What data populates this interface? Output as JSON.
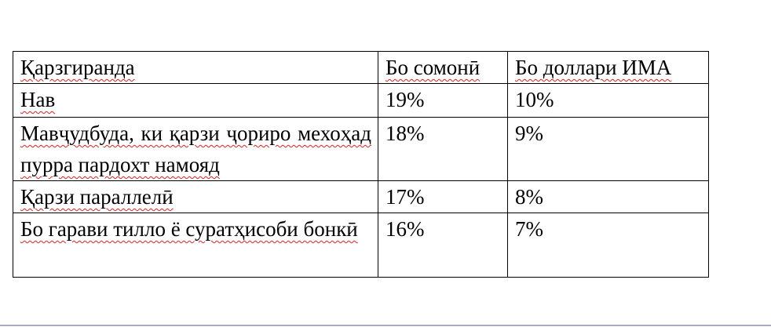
{
  "table": {
    "headers": [
      "Қарзгиранда",
      "Бо сомонӣ",
      "Бо доллари ИМА"
    ],
    "rows": [
      [
        "Нав",
        "19%",
        "10%"
      ],
      [
        "Мавҷудбуда, ки қарзи ҷориро мехоҳад пурра пардохт намояд",
        "18%",
        "9%"
      ],
      [
        "Қарзи параллелӣ",
        "17%",
        "8%"
      ],
      [
        "Бо гарави тилло ё суратҳисоби бонкӣ",
        "16%",
        "7%"
      ]
    ]
  }
}
